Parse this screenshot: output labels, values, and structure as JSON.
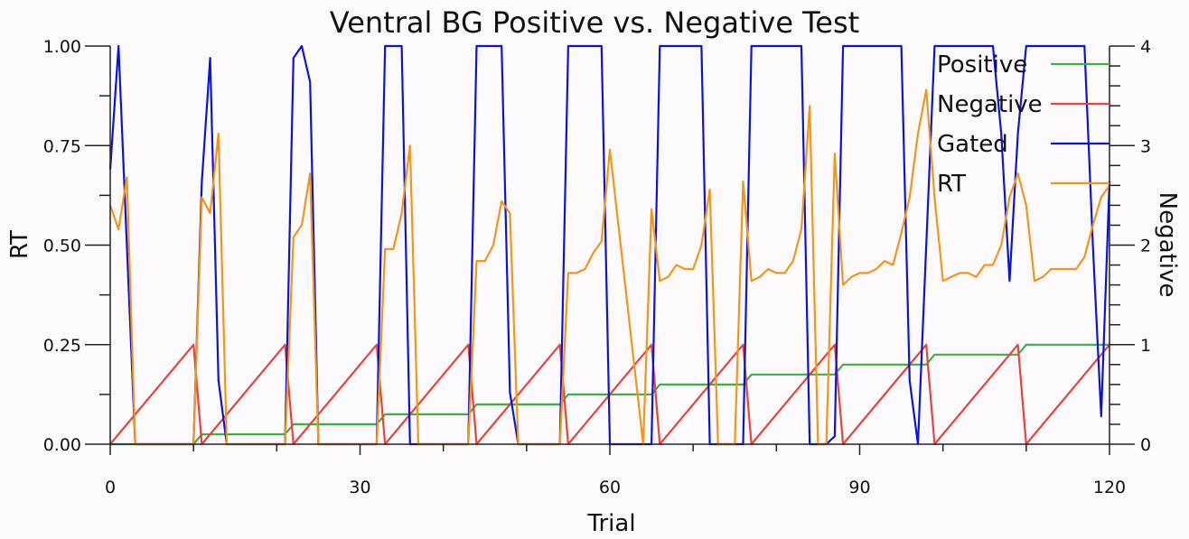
{
  "chart_data": {
    "type": "line",
    "title": "Ventral BG Positive vs. Negative Test",
    "xlabel": "Trial",
    "ylabel": "RT",
    "y2label": "Negative",
    "xlim": [
      0,
      120
    ],
    "ylim": [
      0,
      1
    ],
    "y2lim": [
      0,
      4
    ],
    "xticks": [
      0,
      30,
      60,
      90,
      120
    ],
    "xtick_labels": [
      "0",
      "30",
      "60",
      "90",
      "120"
    ],
    "yticks": [
      0,
      0.25,
      0.5,
      0.75,
      1
    ],
    "ytick_labels": [
      "0.00",
      "0.25",
      "0.50",
      "0.75",
      "1.00"
    ],
    "y2ticks": [
      0,
      1,
      2,
      3,
      4
    ],
    "y2tick_labels": [
      "0",
      "1",
      "2",
      "3",
      "4"
    ],
    "legend_position": "top-right",
    "grid": false,
    "series": [
      {
        "name": "Positive",
        "color": "#3cb043",
        "x": [
          0,
          10,
          11,
          21,
          22,
          32,
          33,
          43,
          44,
          54,
          55,
          65,
          66,
          76,
          77,
          87,
          88,
          98,
          99,
          109,
          110,
          120
        ],
        "y": [
          0,
          0,
          0.025,
          0.025,
          0.05,
          0.05,
          0.075,
          0.075,
          0.1,
          0.1,
          0.125,
          0.125,
          0.15,
          0.15,
          0.175,
          0.175,
          0.2,
          0.2,
          0.225,
          0.225,
          0.25,
          0.25
        ]
      },
      {
        "name": "Negative",
        "color": "#e8433a",
        "x": [
          0,
          10,
          11,
          21,
          22,
          32,
          33,
          43,
          44,
          54,
          55,
          65,
          66,
          76,
          77,
          87,
          88,
          98,
          99,
          109,
          110,
          120
        ],
        "y": [
          0,
          0.25,
          0,
          0.25,
          0,
          0.25,
          0,
          0.25,
          0,
          0.25,
          0,
          0.25,
          0,
          0.25,
          0,
          0.25,
          0,
          0.25,
          0,
          0.25,
          0,
          0.25
        ]
      },
      {
        "name": "Gated",
        "color": "#0a14d8",
        "x": [
          0,
          1,
          2,
          3,
          10,
          11,
          12,
          13,
          14,
          21,
          22,
          23,
          24,
          25,
          32,
          33,
          35,
          36,
          43,
          44,
          47,
          48,
          49,
          54,
          55,
          59,
          60,
          65,
          66,
          71,
          72,
          76,
          77,
          83,
          84,
          86,
          87,
          88,
          95,
          96,
          97,
          98,
          99,
          106,
          107,
          108,
          109,
          110,
          117,
          118,
          119,
          120
        ],
        "y": [
          0.69,
          1,
          0.5,
          0,
          0,
          0.66,
          0.97,
          0.16,
          0,
          0,
          0.97,
          1,
          0.91,
          0,
          0,
          1,
          1,
          0,
          0,
          1,
          1,
          0.13,
          0,
          0,
          1,
          1,
          0,
          0,
          1,
          1,
          0,
          0,
          1,
          1,
          0,
          0,
          0.02,
          1,
          1,
          0.16,
          0,
          0.5,
          1,
          1,
          0.78,
          0.41,
          0.78,
          1,
          1,
          0.5,
          0.07,
          0.66
        ]
      },
      {
        "name": "RT",
        "color": "#f39519",
        "x": [
          0,
          1,
          2,
          3,
          10,
          11,
          12,
          13,
          14,
          21,
          22,
          23,
          24,
          25,
          32,
          33,
          34,
          35,
          36,
          37,
          43,
          44,
          45,
          46,
          47,
          48,
          49,
          54,
          55,
          56,
          57,
          58,
          59,
          60,
          64,
          65,
          66,
          67,
          68,
          69,
          70,
          71,
          72,
          73,
          75,
          76,
          77,
          78,
          79,
          80,
          81,
          82,
          83,
          84,
          85,
          86,
          87,
          88,
          89,
          90,
          91,
          92,
          93,
          94,
          95,
          96,
          97,
          98,
          99,
          100,
          101,
          102,
          103,
          104,
          105,
          106,
          107,
          108,
          109,
          110,
          111,
          112,
          113,
          114,
          115,
          116,
          117,
          118,
          119,
          120
        ],
        "y": [
          0.6,
          0.54,
          0.67,
          0,
          0,
          0.62,
          0.58,
          0.78,
          0,
          0,
          0.52,
          0.55,
          0.68,
          0,
          0,
          0.49,
          0.49,
          0.58,
          0.75,
          0,
          0,
          0.46,
          0.46,
          0.5,
          0.61,
          0.58,
          0,
          0,
          0.43,
          0.43,
          0.44,
          0.48,
          0.51,
          0.74,
          0,
          0.59,
          0.41,
          0.42,
          0.45,
          0.44,
          0.44,
          0.5,
          0.64,
          0,
          0,
          0.66,
          0.41,
          0.42,
          0.44,
          0.43,
          0.43,
          0.46,
          0.54,
          0.85,
          0,
          0,
          0.73,
          0.4,
          0.42,
          0.43,
          0.43,
          0.44,
          0.46,
          0.45,
          0.53,
          0.62,
          0.78,
          0.89,
          0.62,
          0.41,
          0.42,
          0.43,
          0.43,
          0.42,
          0.45,
          0.45,
          0.5,
          0.62,
          0.68,
          0.6,
          0.41,
          0.42,
          0.44,
          0.44,
          0.44,
          0.44,
          0.47,
          0.55,
          0.62,
          0.65
        ]
      }
    ]
  }
}
